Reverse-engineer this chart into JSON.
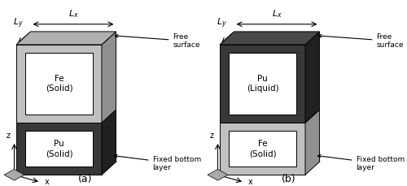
{
  "fig_width": 5.0,
  "fig_height": 2.29,
  "dpi": 100,
  "background": "#ffffff",
  "panel_a": {
    "label": "(a)",
    "top_block": {
      "front_color": "#c0c0c0",
      "side_color": "#909090",
      "top_color": "#b0b0b0",
      "label": "Fe\n(Solid)"
    },
    "bottom_block": {
      "front_color": "#383838",
      "side_color": "#202020",
      "top_color": "#484848",
      "label": "Pu\n(Solid)"
    }
  },
  "panel_b": {
    "label": "(b)",
    "top_block": {
      "front_color": "#383838",
      "side_color": "#202020",
      "top_color": "#484848",
      "label": "Pu\n(Liquid)"
    },
    "bottom_block": {
      "front_color": "#c0c0c0",
      "side_color": "#909090",
      "top_color": "#b0b0b0",
      "label": "Fe\n(Solid)"
    }
  }
}
